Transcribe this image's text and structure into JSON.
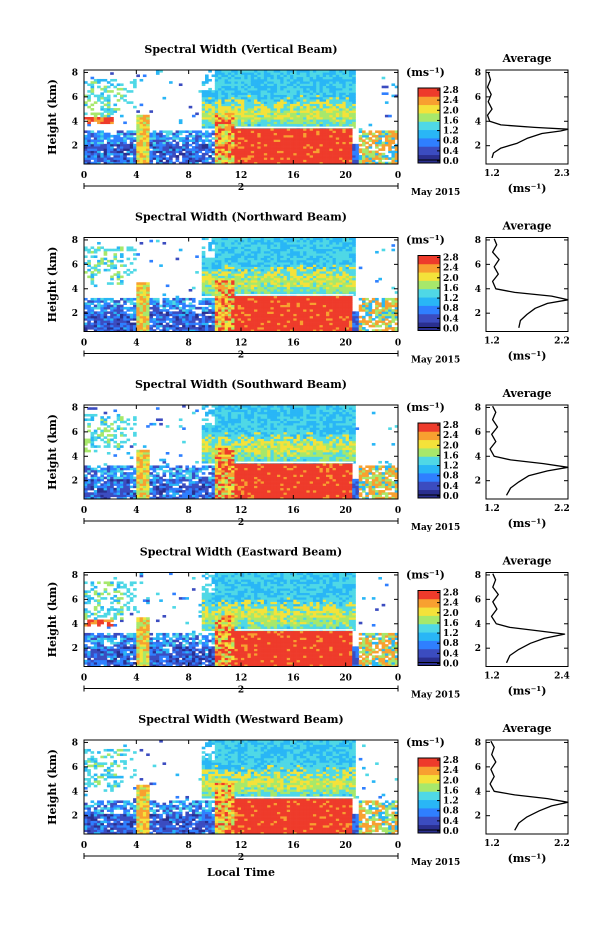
{
  "colors": {
    "jet": [
      "#2a2f8f",
      "#3b4cc0",
      "#2f7fff",
      "#29b6f6",
      "#4fd8e6",
      "#a7e86b",
      "#f4e23a",
      "#f8a030",
      "#ee3b2b"
    ]
  },
  "chart_data": [
    {
      "type": "heatmap",
      "title": "Spectral Width (Vertical Beam)",
      "ylabel": "Height (km)",
      "x_ticks": [
        "0",
        "4",
        "8",
        "12",
        "16",
        "20",
        "0"
      ],
      "date_tick": "2",
      "date_label": "May 2015",
      "y_ticks": [
        "2",
        "4",
        "6",
        "8"
      ],
      "ylim": [
        0.5,
        8.2
      ],
      "xlim": [
        0,
        24
      ],
      "colorbar": {
        "unit": "(ms⁻¹)",
        "ticks": [
          "0.0",
          "0.4",
          "0.8",
          "1.2",
          "1.6",
          "2.0",
          "2.4",
          "2.8"
        ]
      },
      "average": {
        "title": "Average",
        "x_ticks": [
          "1.2",
          "2.3"
        ],
        "xlim": [
          1.2,
          2.3
        ],
        "xlabel": "(ms⁻¹)",
        "y_ticks": [
          "2",
          "4",
          "6",
          "8"
        ],
        "profile": [
          [
            1.28,
            1.0
          ],
          [
            1.3,
            1.4
          ],
          [
            1.4,
            1.8
          ],
          [
            1.62,
            2.2
          ],
          [
            1.75,
            2.6
          ],
          [
            1.95,
            3.0
          ],
          [
            2.2,
            3.2
          ],
          [
            2.3,
            3.35
          ],
          [
            1.85,
            3.5
          ],
          [
            1.4,
            3.7
          ],
          [
            1.25,
            4.0
          ],
          [
            1.22,
            4.5
          ],
          [
            1.28,
            5.0
          ],
          [
            1.23,
            5.6
          ],
          [
            1.27,
            6.2
          ],
          [
            1.22,
            6.8
          ],
          [
            1.26,
            7.4
          ],
          [
            1.23,
            8.0
          ]
        ]
      }
    },
    {
      "type": "heatmap",
      "title": "Spectral Width (Northward Beam)",
      "ylabel": "Height (km)",
      "x_ticks": [
        "0",
        "4",
        "8",
        "12",
        "16",
        "20",
        "0"
      ],
      "date_tick": "2",
      "date_label": "May 2015",
      "y_ticks": [
        "2",
        "4",
        "6",
        "8"
      ],
      "ylim": [
        0.5,
        8.2
      ],
      "xlim": [
        0,
        24
      ],
      "colorbar": {
        "unit": "(ms⁻¹)",
        "ticks": [
          "0.0",
          "0.4",
          "0.8",
          "1.2",
          "1.6",
          "2.0",
          "2.4",
          "2.8"
        ]
      },
      "average": {
        "title": "Average",
        "x_ticks": [
          "1.2",
          "2.2"
        ],
        "xlim": [
          1.2,
          2.2
        ],
        "xlabel": "(ms⁻¹)",
        "y_ticks": [
          "2",
          "4",
          "6",
          "8"
        ],
        "profile": [
          [
            1.6,
            0.8
          ],
          [
            1.62,
            1.4
          ],
          [
            1.7,
            1.9
          ],
          [
            1.8,
            2.4
          ],
          [
            1.95,
            2.8
          ],
          [
            2.2,
            3.1
          ],
          [
            2.0,
            3.4
          ],
          [
            1.55,
            3.7
          ],
          [
            1.32,
            4.0
          ],
          [
            1.28,
            4.6
          ],
          [
            1.35,
            5.2
          ],
          [
            1.3,
            5.8
          ],
          [
            1.36,
            6.4
          ],
          [
            1.28,
            7.0
          ],
          [
            1.33,
            7.6
          ],
          [
            1.3,
            8.1
          ]
        ]
      }
    },
    {
      "type": "heatmap",
      "title": "Spectral Width (Southward Beam)",
      "ylabel": "Height (km)",
      "x_ticks": [
        "0",
        "4",
        "8",
        "12",
        "16",
        "20",
        "0"
      ],
      "date_tick": "2",
      "date_label": "May 2015",
      "y_ticks": [
        "2",
        "4",
        "6",
        "8"
      ],
      "ylim": [
        0.5,
        8.2
      ],
      "xlim": [
        0,
        24
      ],
      "colorbar": {
        "unit": "(ms⁻¹)",
        "ticks": [
          "0.0",
          "0.4",
          "0.8",
          "1.2",
          "1.6",
          "2.0",
          "2.4",
          "2.8"
        ]
      },
      "average": {
        "title": "Average",
        "x_ticks": [
          "1.2",
          "2.2"
        ],
        "xlim": [
          1.2,
          2.2
        ],
        "xlabel": "(ms⁻¹)",
        "y_ticks": [
          "2",
          "4",
          "6",
          "8"
        ],
        "profile": [
          [
            1.45,
            0.8
          ],
          [
            1.5,
            1.4
          ],
          [
            1.6,
            1.9
          ],
          [
            1.72,
            2.4
          ],
          [
            1.95,
            2.8
          ],
          [
            2.2,
            3.1
          ],
          [
            1.9,
            3.4
          ],
          [
            1.5,
            3.7
          ],
          [
            1.3,
            4.0
          ],
          [
            1.25,
            4.6
          ],
          [
            1.32,
            5.2
          ],
          [
            1.27,
            5.8
          ],
          [
            1.34,
            6.4
          ],
          [
            1.28,
            7.0
          ],
          [
            1.32,
            7.6
          ],
          [
            1.28,
            8.1
          ]
        ]
      }
    },
    {
      "type": "heatmap",
      "title": "Spectral Width (Eastward Beam)",
      "ylabel": "Height (km)",
      "x_ticks": [
        "0",
        "4",
        "8",
        "12",
        "16",
        "20",
        "0"
      ],
      "date_tick": "2",
      "date_label": "May 2015",
      "y_ticks": [
        "2",
        "4",
        "6",
        "8"
      ],
      "ylim": [
        0.5,
        8.2
      ],
      "xlim": [
        0,
        24
      ],
      "colorbar": {
        "unit": "(ms⁻¹)",
        "ticks": [
          "0.0",
          "0.4",
          "0.8",
          "1.2",
          "1.6",
          "2.0",
          "2.4",
          "2.8"
        ]
      },
      "average": {
        "title": "Average",
        "x_ticks": [
          "1.2",
          "2.4"
        ],
        "xlim": [
          1.2,
          2.4
        ],
        "xlabel": "(ms⁻¹)",
        "y_ticks": [
          "2",
          "4",
          "6",
          "8"
        ],
        "profile": [
          [
            1.5,
            0.8
          ],
          [
            1.55,
            1.4
          ],
          [
            1.68,
            1.9
          ],
          [
            1.85,
            2.4
          ],
          [
            2.05,
            2.8
          ],
          [
            2.35,
            3.15
          ],
          [
            2.0,
            3.4
          ],
          [
            1.55,
            3.7
          ],
          [
            1.35,
            4.0
          ],
          [
            1.28,
            4.6
          ],
          [
            1.36,
            5.2
          ],
          [
            1.3,
            5.8
          ],
          [
            1.38,
            6.4
          ],
          [
            1.3,
            7.0
          ],
          [
            1.34,
            7.6
          ],
          [
            1.3,
            8.1
          ]
        ]
      }
    },
    {
      "type": "heatmap",
      "title": "Spectral Width (Westward Beam)",
      "ylabel": "Height (km)",
      "xlabel": "Local Time",
      "x_ticks": [
        "0",
        "4",
        "8",
        "12",
        "16",
        "20",
        "0"
      ],
      "date_tick": "2",
      "date_label": "May 2015",
      "y_ticks": [
        "2",
        "4",
        "6",
        "8"
      ],
      "ylim": [
        0.5,
        8.2
      ],
      "xlim": [
        0,
        24
      ],
      "colorbar": {
        "unit": "(ms⁻¹)",
        "ticks": [
          "0.0",
          "0.4",
          "0.8",
          "1.2",
          "1.6",
          "2.0",
          "2.4",
          "2.8"
        ]
      },
      "average": {
        "title": "Average",
        "x_ticks": [
          "1.2",
          "2.2"
        ],
        "xlim": [
          1.2,
          2.2
        ],
        "xlabel": "(ms⁻¹)",
        "y_ticks": [
          "2",
          "4",
          "6",
          "8"
        ],
        "profile": [
          [
            1.55,
            0.8
          ],
          [
            1.6,
            1.4
          ],
          [
            1.7,
            1.9
          ],
          [
            1.85,
            2.4
          ],
          [
            2.0,
            2.8
          ],
          [
            2.2,
            3.1
          ],
          [
            1.95,
            3.4
          ],
          [
            1.55,
            3.7
          ],
          [
            1.3,
            4.0
          ],
          [
            1.25,
            4.6
          ],
          [
            1.3,
            5.2
          ],
          [
            1.26,
            5.8
          ],
          [
            1.32,
            6.4
          ],
          [
            1.27,
            7.0
          ],
          [
            1.3,
            7.6
          ],
          [
            1.26,
            8.1
          ]
        ]
      }
    }
  ]
}
